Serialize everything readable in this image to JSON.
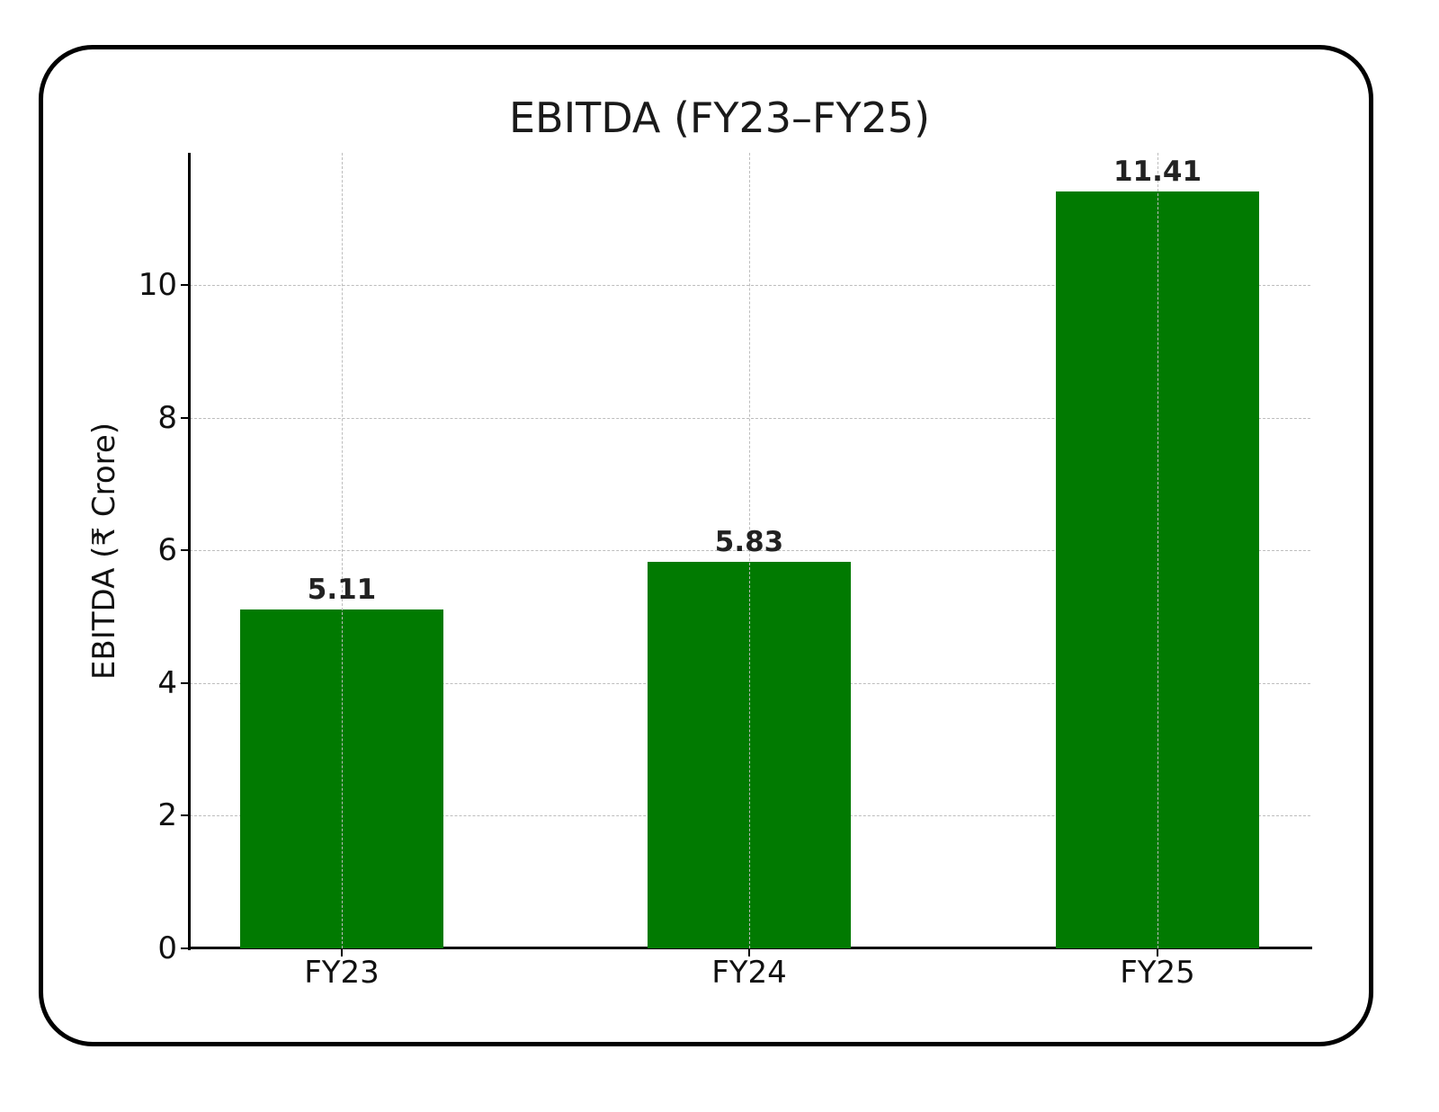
{
  "chart_data": {
    "type": "bar",
    "title": "EBITDA (FY23–FY25)",
    "xlabel": "",
    "ylabel": "EBITDA (₹ Crore)",
    "categories": [
      "FY23",
      "FY24",
      "FY25"
    ],
    "values": [
      5.11,
      5.83,
      11.41
    ],
    "data_labels": [
      "5.11",
      "5.83",
      "11.41"
    ],
    "ylim": [
      0,
      12
    ],
    "yticks": [
      "0",
      "2",
      "4",
      "6",
      "8",
      "10"
    ],
    "grid": true,
    "grid_style": "dashed",
    "legend": null,
    "bar_color": "#017a01"
  }
}
